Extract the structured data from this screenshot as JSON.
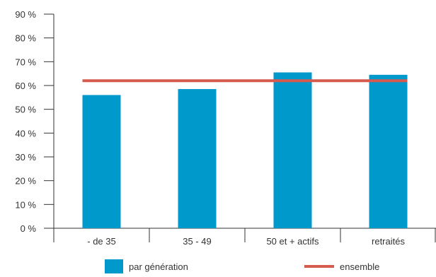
{
  "chart_data": {
    "type": "bar",
    "categories": [
      "- de 35",
      "35 - 49",
      "50 et + actifs",
      "retraités"
    ],
    "series": [
      {
        "name": "par génération",
        "type": "bar",
        "values": [
          56,
          58.5,
          65.5,
          64.5
        ],
        "color": "#0099cc"
      },
      {
        "name": "ensemble",
        "type": "line",
        "values": [
          62,
          62,
          62,
          62
        ],
        "color": "#d65a4e"
      }
    ],
    "y_ticks": [
      "0 %",
      "10 %",
      "20 %",
      "30 %",
      "40 %",
      "50 %",
      "60 %",
      "70 %",
      "80 %",
      "90 %"
    ],
    "ylim": [
      0,
      90
    ],
    "grid": false,
    "legend_position": "bottom"
  }
}
